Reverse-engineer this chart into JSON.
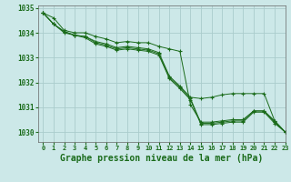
{
  "background_color": "#cce8e8",
  "grid_color": "#aacccc",
  "line_color": "#1a6b1a",
  "marker_color": "#1a6b1a",
  "xlabel": "Graphe pression niveau de la mer (hPa)",
  "xlabel_fontsize": 7,
  "xlim": [
    -0.5,
    23
  ],
  "ylim": [
    1029.6,
    1035.1
  ],
  "yticks": [
    1030,
    1031,
    1032,
    1033,
    1034,
    1035
  ],
  "xticks": [
    0,
    1,
    2,
    3,
    4,
    5,
    6,
    7,
    8,
    9,
    10,
    11,
    12,
    13,
    14,
    15,
    16,
    17,
    18,
    19,
    20,
    21,
    22,
    23
  ],
  "series": [
    [
      1034.8,
      1034.6,
      1034.1,
      1034.0,
      1034.0,
      1033.85,
      1033.75,
      1033.6,
      1033.65,
      1033.6,
      1033.6,
      1033.45,
      1033.35,
      1033.25,
      1031.1,
      1030.4,
      1030.4,
      1030.45,
      1030.5,
      1030.5,
      1030.85,
      1030.85,
      1030.45,
      1030.0
    ],
    [
      1034.8,
      1034.35,
      1034.05,
      1033.9,
      1033.85,
      1033.65,
      1033.55,
      1033.4,
      1033.45,
      1033.4,
      1033.35,
      1033.2,
      1032.25,
      1031.85,
      1031.4,
      1031.35,
      1031.4,
      1031.5,
      1031.55,
      1031.55,
      1031.55,
      1031.55,
      1030.45,
      1030.0
    ],
    [
      1034.8,
      1034.35,
      1034.05,
      1033.9,
      1033.85,
      1033.6,
      1033.5,
      1033.35,
      1033.4,
      1033.35,
      1033.3,
      1033.15,
      1032.2,
      1031.8,
      1031.35,
      1030.35,
      1030.35,
      1030.4,
      1030.45,
      1030.45,
      1030.85,
      1030.85,
      1030.4,
      1030.0
    ],
    [
      1034.8,
      1034.35,
      1034.0,
      1033.9,
      1033.8,
      1033.55,
      1033.45,
      1033.3,
      1033.35,
      1033.3,
      1033.25,
      1033.1,
      1032.15,
      1031.75,
      1031.3,
      1030.3,
      1030.3,
      1030.35,
      1030.4,
      1030.4,
      1030.8,
      1030.8,
      1030.35,
      1030.0
    ]
  ]
}
